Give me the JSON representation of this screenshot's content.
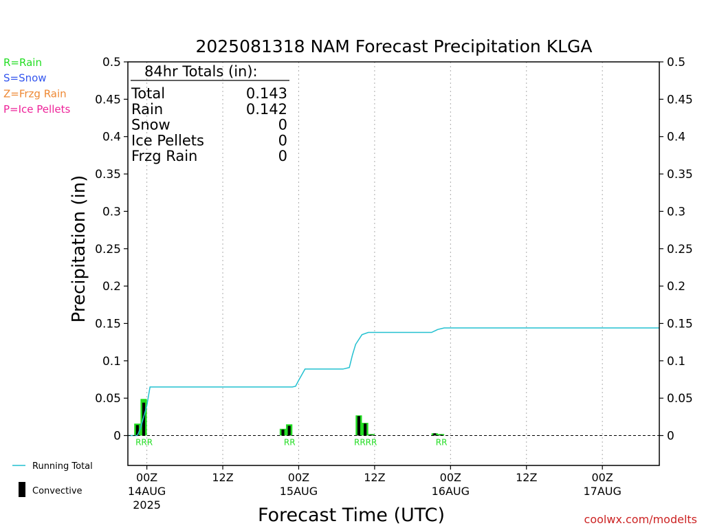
{
  "chart_data": {
    "type": "bar",
    "title": "2025081318 NAM Forecast Precipitation KLGA",
    "xlabel": "Forecast Time (UTC)",
    "ylabel": "Precipitation (in)",
    "ylim": [
      -0.04,
      0.5
    ],
    "y_ticks": [
      0,
      0.05,
      0.1,
      0.15,
      0.2,
      0.25,
      0.3,
      0.35,
      0.4,
      0.45,
      0.5
    ],
    "y_tick_labels": [
      "0",
      "0.05",
      "0.1",
      "0.15",
      "0.2",
      "0.25",
      "0.3",
      "0.35",
      "0.4",
      "0.45",
      "0.5"
    ],
    "x_unit": "hours after 2025-08-13 18Z",
    "xlim": [
      3,
      87
    ],
    "x_ticks": [
      {
        "hour": 6,
        "line1": "00Z",
        "line2": "14AUG",
        "line3": "2025"
      },
      {
        "hour": 18,
        "line1": "12Z",
        "line2": "",
        "line3": ""
      },
      {
        "hour": 30,
        "line1": "00Z",
        "line2": "15AUG",
        "line3": ""
      },
      {
        "hour": 42,
        "line1": "12Z",
        "line2": "",
        "line3": ""
      },
      {
        "hour": 54,
        "line1": "00Z",
        "line2": "16AUG",
        "line3": ""
      },
      {
        "hour": 66,
        "line1": "12Z",
        "line2": "",
        "line3": ""
      },
      {
        "hour": 78,
        "line1": "00Z",
        "line2": "17AUG",
        "line3": ""
      }
    ],
    "legend_types": [
      {
        "label": "R=Rain",
        "color": "#22dd22"
      },
      {
        "label": "S=Snow",
        "color": "#3355ee"
      },
      {
        "label": "Z=Frzg Rain",
        "color": "#ee8833"
      },
      {
        "label": "P=Ice Pellets",
        "color": "#ee2299"
      }
    ],
    "legend_lines": [
      {
        "label": "Running Total",
        "color": "#22c0d0",
        "kind": "line"
      },
      {
        "label": "Convective",
        "color": "#000000",
        "kind": "bar"
      }
    ],
    "totals_box": {
      "heading": "84hr Totals (in):",
      "rows": [
        {
          "label": "Total",
          "value": "0.143"
        },
        {
          "label": "Rain",
          "value": "0.142"
        },
        {
          "label": "Snow",
          "value": "0"
        },
        {
          "label": "Ice Pellets",
          "value": "0"
        },
        {
          "label": "Frzg Rain",
          "value": "0"
        }
      ]
    },
    "series": [
      {
        "name": "Rain",
        "color": "#22dd22",
        "bar_width_hours": 1,
        "points": [
          {
            "hour": 4,
            "value": 0.016
          },
          {
            "hour": 5,
            "value": 0.049
          },
          {
            "hour": 27,
            "value": 0.009
          },
          {
            "hour": 28,
            "value": 0.015
          },
          {
            "hour": 39,
            "value": 0.027
          },
          {
            "hour": 40,
            "value": 0.017
          },
          {
            "hour": 41,
            "value": 0.002
          },
          {
            "hour": 51,
            "value": 0.003
          },
          {
            "hour": 52,
            "value": 0.002
          }
        ]
      },
      {
        "name": "Convective",
        "color": "#000000",
        "points": [
          {
            "hour": 4,
            "value": 0.014
          },
          {
            "hour": 5,
            "value": 0.044
          },
          {
            "hour": 27,
            "value": 0.008
          },
          {
            "hour": 28,
            "value": 0.013
          },
          {
            "hour": 39,
            "value": 0.026
          },
          {
            "hour": 40,
            "value": 0.016
          },
          {
            "hour": 41,
            "value": 0.001
          },
          {
            "hour": 51,
            "value": 0.003
          },
          {
            "hour": 52,
            "value": 0.001
          }
        ]
      },
      {
        "name": "Running Total",
        "color": "#22c0d0",
        "kind": "line",
        "points": [
          [
            3,
            0
          ],
          [
            4.5,
            0
          ],
          [
            5,
            0.01
          ],
          [
            6,
            0.04
          ],
          [
            6.5,
            0.065
          ],
          [
            7,
            0.065
          ],
          [
            29,
            0.065
          ],
          [
            29.5,
            0.066
          ],
          [
            30,
            0.074
          ],
          [
            31,
            0.089
          ],
          [
            37,
            0.089
          ],
          [
            38,
            0.091
          ],
          [
            38.5,
            0.108
          ],
          [
            39,
            0.122
          ],
          [
            40,
            0.135
          ],
          [
            41,
            0.138
          ],
          [
            51,
            0.138
          ],
          [
            52,
            0.142
          ],
          [
            53,
            0.144
          ],
          [
            87,
            0.144
          ]
        ]
      }
    ],
    "ptype_codes": [
      {
        "hour": 6,
        "text": "RRR"
      },
      {
        "hour": 29,
        "text": "RR"
      },
      {
        "hour": 41,
        "text": "RRRR"
      },
      {
        "hour": 53,
        "text": "RR"
      }
    ],
    "ptype_code_color": "#22dd22",
    "grid": {
      "vertical": true,
      "horizontal": false
    }
  },
  "credit": "coolwx.com/modelts",
  "credit_color": "#cc2222"
}
